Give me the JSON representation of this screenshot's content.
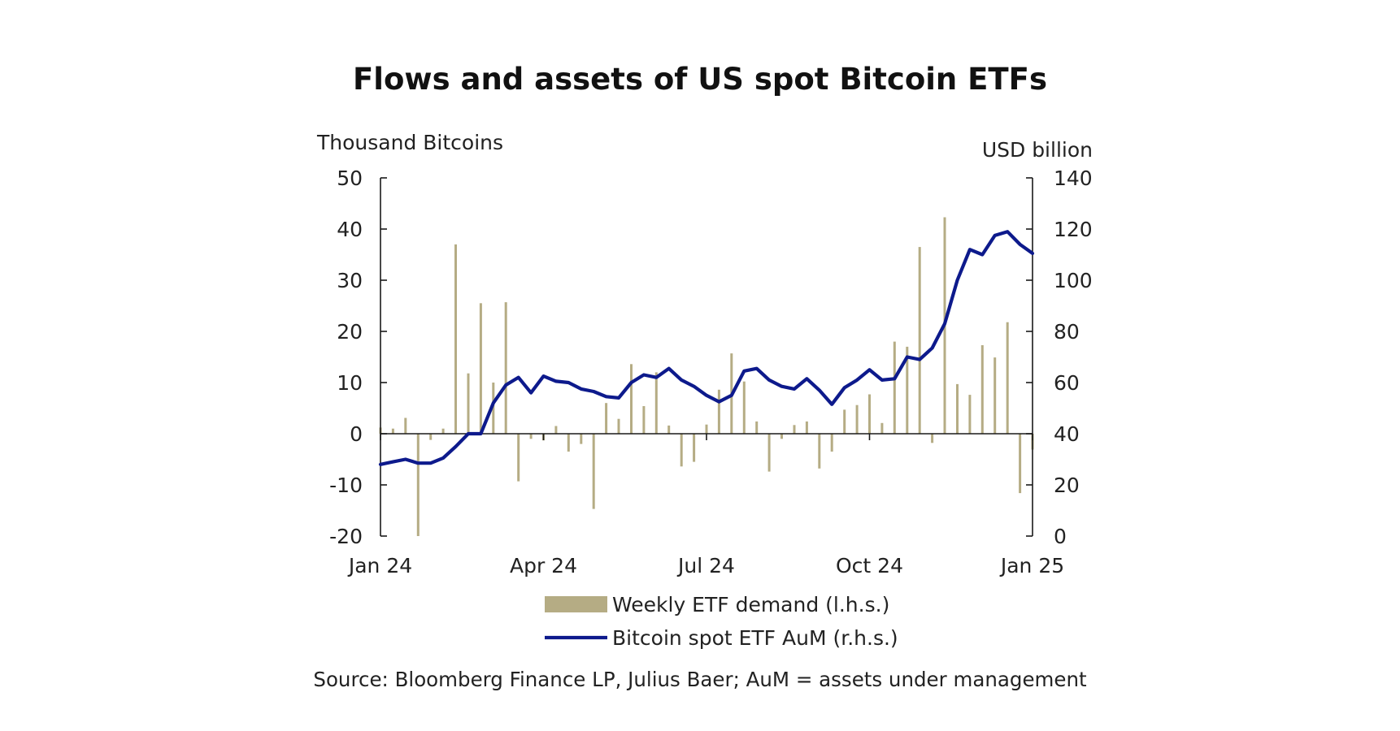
{
  "colors": {
    "bars": "#b5ac84",
    "line": "#0d1a8c",
    "axis": "#1a1a1a",
    "text": "#222222"
  },
  "chart_data": {
    "type": "bar",
    "title": "Flows and assets of US spot Bitcoin ETFs",
    "left_axis_label": "Thousand Bitcoins",
    "right_axis_label": "USD billion",
    "left_ylim": [
      -20,
      50
    ],
    "left_ticks": [
      -20,
      -10,
      0,
      10,
      20,
      30,
      40,
      50
    ],
    "right_ylim": [
      0,
      140
    ],
    "right_ticks": [
      0,
      20,
      40,
      60,
      80,
      100,
      120,
      140
    ],
    "x_ticks": [
      "Jan 24",
      "Apr 24",
      "Jul 24",
      "Oct 24",
      "Jan 25"
    ],
    "x_tick_weeks": [
      0,
      13,
      26,
      39,
      52
    ],
    "source": "Source: Bloomberg Finance LP, Julius Baer; AuM = assets under management",
    "series": [
      {
        "name": "Weekly ETF demand (l.h.s.)",
        "type": "bar",
        "axis": "left",
        "values": [
          1.2,
          1.0,
          3.1,
          -20,
          -1.2,
          1.0,
          37,
          11.8,
          25.5,
          10.0,
          25.7,
          -9.3,
          -1.0,
          -1.3,
          1.5,
          -3.5,
          -2.0,
          -14.7,
          6.0,
          2.9,
          13.6,
          5.4,
          12.0,
          1.6,
          -6.4,
          -5.5,
          1.8,
          8.6,
          15.7,
          10.2,
          2.4,
          -7.4,
          -1.0,
          1.7,
          2.4,
          -6.8,
          -3.5,
          4.7,
          5.6,
          7.7,
          2.1,
          18.0,
          17.0,
          36.5,
          -1.8,
          42.3,
          9.7,
          7.6,
          17.3,
          14.9,
          21.8,
          -11.6,
          -3.1
        ]
      },
      {
        "name": "Bitcoin spot ETF AuM (r.h.s.)",
        "type": "line",
        "axis": "right",
        "values": [
          28,
          29,
          30,
          28.5,
          28.5,
          30.5,
          35,
          40,
          40,
          52,
          59,
          62,
          56,
          62.5,
          60.5,
          60,
          57.5,
          56.5,
          54.5,
          54,
          60,
          63,
          62,
          65.5,
          61,
          58.5,
          55,
          52.5,
          55,
          64.5,
          65.5,
          61,
          58.5,
          57.5,
          61.5,
          57,
          51.5,
          58,
          61,
          65,
          61,
          61.5,
          70,
          69,
          73.5,
          83,
          100,
          112,
          110,
          117.5,
          119,
          114,
          110.5
        ]
      }
    ]
  }
}
